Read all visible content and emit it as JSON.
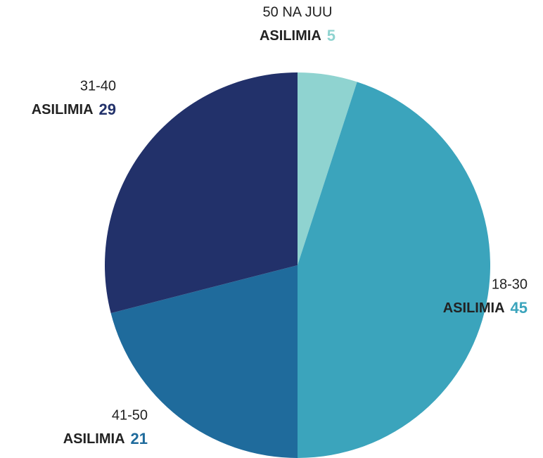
{
  "chart_data": {
    "type": "pie",
    "categories": [
      "50 NA JUU",
      "18-30",
      "41-50",
      "31-40"
    ],
    "values": [
      5,
      45,
      21,
      29
    ],
    "colors": [
      "#8fd3d0",
      "#3ba4bc",
      "#1f6b9c",
      "#22316a"
    ],
    "value_prefix": "ASILIMIA"
  }
}
